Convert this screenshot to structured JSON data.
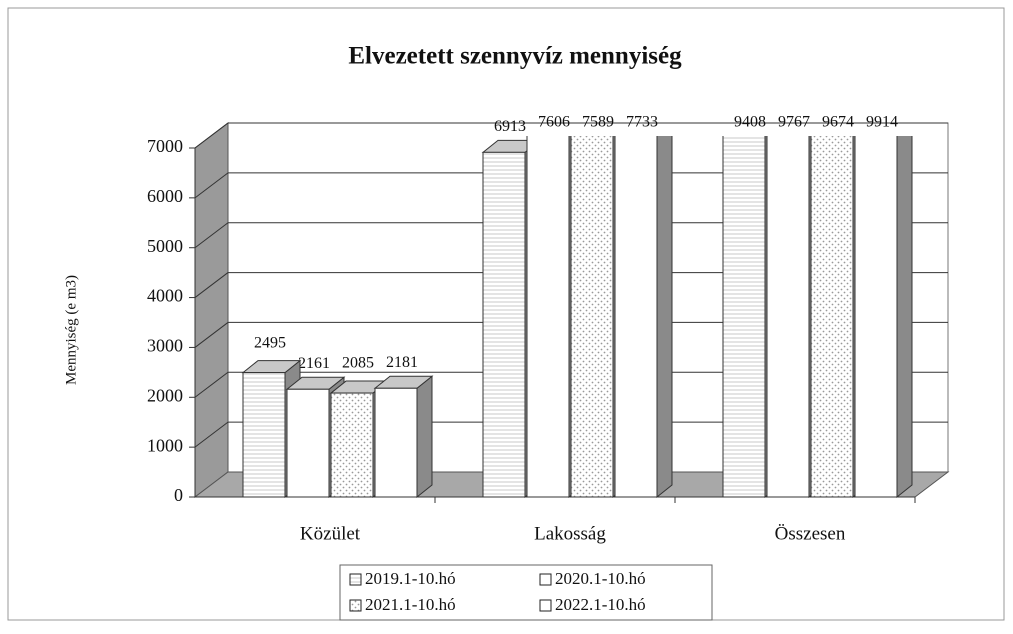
{
  "chart_data": {
    "type": "bar3d",
    "title": "Elvezetett szennyvíz mennyiség",
    "y_label": "Mennyiség (e m3)",
    "categories": [
      "Közület",
      "Lakosság",
      "Összesen"
    ],
    "series": [
      {
        "name": "2019.1-10.hó",
        "color": "#ffffff",
        "pattern": "lines",
        "values": [
          2495,
          6913,
          9408
        ]
      },
      {
        "name": "2020.1-10.hó",
        "color": "#ffffff",
        "pattern": "none",
        "values": [
          2161,
          7606,
          9767
        ]
      },
      {
        "name": "2021.1-10.hó",
        "color": "#ffffff",
        "pattern": "dots",
        "values": [
          2085,
          7589,
          9674
        ]
      },
      {
        "name": "2022.1-10.hó",
        "color": "#ffffff",
        "pattern": "none",
        "values": [
          2181,
          7733,
          9914
        ]
      }
    ],
    "ylim": [
      0,
      7000
    ],
    "yticks": [
      0,
      1000,
      2000,
      3000,
      4000,
      5000,
      6000,
      7000
    ],
    "grid": true,
    "legend": "bottom"
  }
}
